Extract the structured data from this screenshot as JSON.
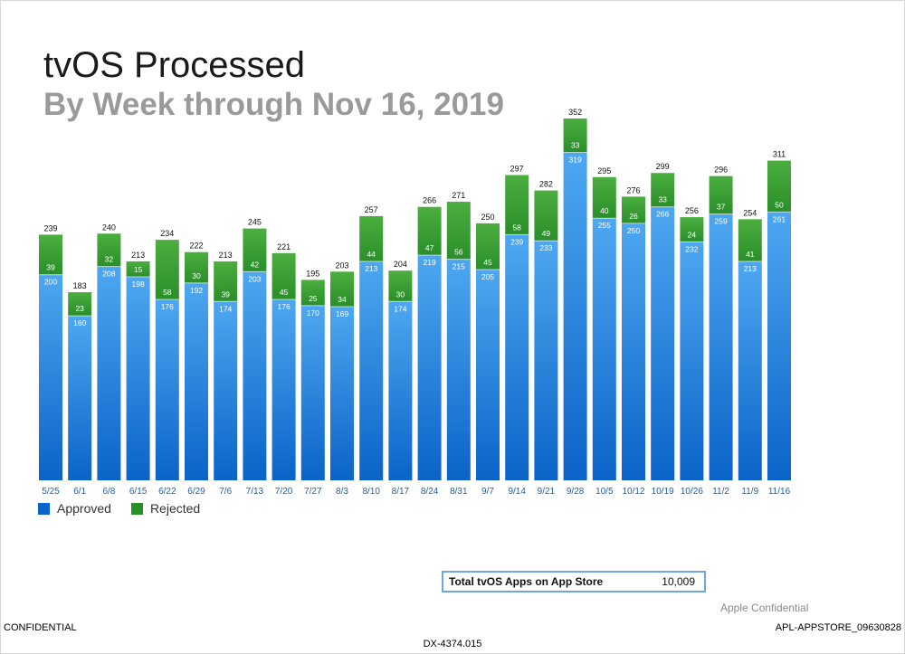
{
  "colors": {
    "approved_top": "#4ea7f0",
    "approved_bottom": "#0a64c8",
    "rejected_top": "#4cae3f",
    "rejected_bottom": "#2a8f2a",
    "category_label": "#1f5fa8"
  },
  "chart_data": {
    "type": "bar",
    "stacked": true,
    "title": "tvOS Processed",
    "subtitle": "By Week through Nov 16, 2019",
    "categories": [
      "5/25",
      "6/1",
      "6/8",
      "6/15",
      "6/22",
      "6/29",
      "7/6",
      "7/13",
      "7/20",
      "7/27",
      "8/3",
      "8/10",
      "8/17",
      "8/24",
      "8/31",
      "9/7",
      "9/14",
      "9/21",
      "9/28",
      "10/5",
      "10/12",
      "10/19",
      "10/26",
      "11/2",
      "11/9",
      "11/16"
    ],
    "series": [
      {
        "name": "Approved",
        "values": [
          200,
          160,
          208,
          198,
          176,
          192,
          174,
          203,
          176,
          170,
          169,
          213,
          174,
          219,
          215,
          205,
          239,
          233,
          319,
          255,
          250,
          266,
          232,
          259,
          213,
          261
        ]
      },
      {
        "name": "Rejected",
        "values": [
          39,
          23,
          32,
          15,
          58,
          30,
          39,
          42,
          45,
          25,
          34,
          44,
          30,
          47,
          56,
          45,
          58,
          49,
          33,
          40,
          26,
          33,
          24,
          37,
          41,
          50
        ]
      }
    ],
    "totals": [
      239,
      183,
      240,
      213,
      234,
      222,
      213,
      245,
      221,
      195,
      203,
      257,
      204,
      266,
      271,
      250,
      297,
      282,
      352,
      295,
      276,
      299,
      256,
      296,
      254,
      311
    ],
    "ylim": [
      0,
      352
    ],
    "grid": false,
    "legend_position": "bottom-left"
  },
  "legend": {
    "approved": "Approved",
    "rejected": "Rejected"
  },
  "summary": {
    "label": "Total tvOS Apps on App Store",
    "value": "10,009"
  },
  "footer": {
    "watermark": "Apple Confidential",
    "left": "CONFIDENTIAL",
    "right": "APL-APPSTORE_09630828",
    "center": "DX-4374.015"
  }
}
